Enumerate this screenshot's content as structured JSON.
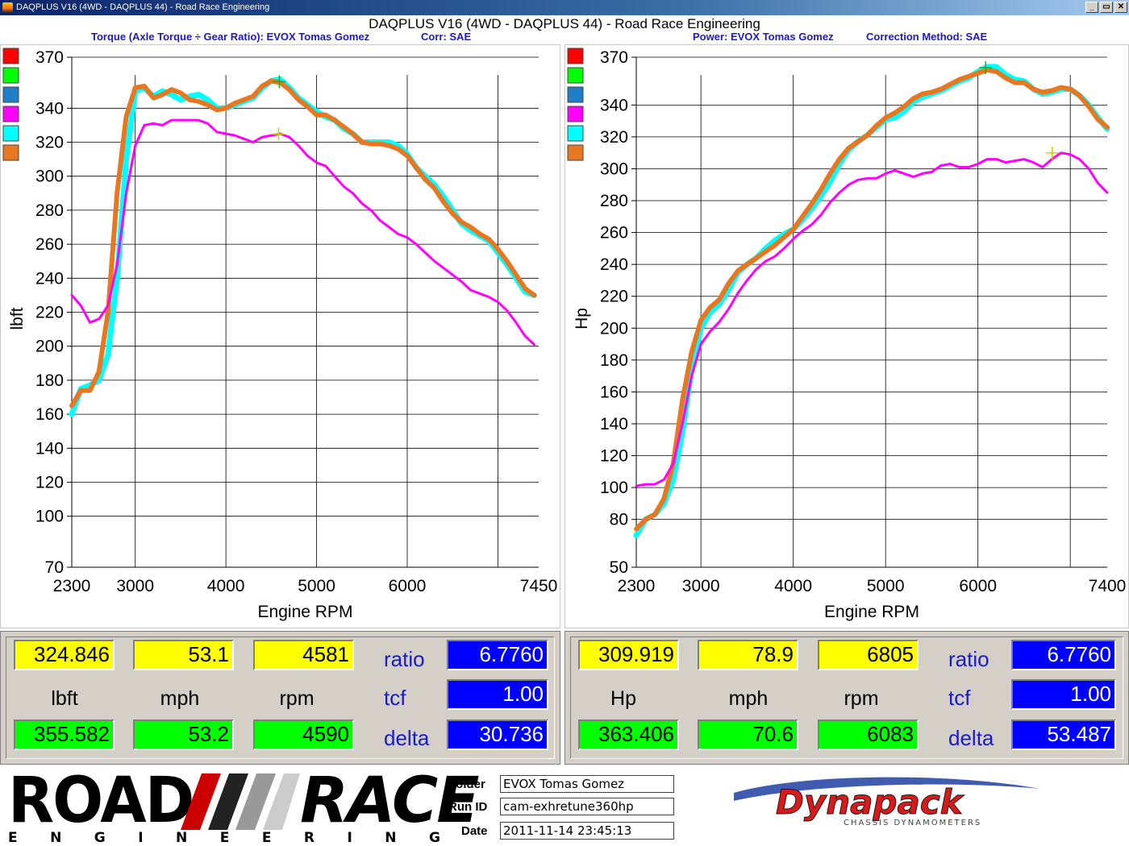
{
  "window": {
    "title": "DAQPLUS V16 (4WD - DAQPLUS 44) - Road Race Engineering",
    "buttons": [
      "_",
      "▭",
      "✕"
    ]
  },
  "main_title": "DAQPLUS V16 (4WD - DAQPLUS 44) - Road Race Engineering",
  "left_panel": {
    "subtitle_a": "Torque (Axle Torque ÷ Gear Ratio): EVOX Tomas Gomez",
    "subtitle_b": "Corr: SAE",
    "readout": {
      "top_values": [
        "324.846",
        "53.1",
        "4581"
      ],
      "units": [
        "lbft",
        "mph",
        "rpm"
      ],
      "bottom_values": [
        "355.582",
        "53.2",
        "4590"
      ],
      "labels": [
        "ratio",
        "tcf",
        "delta"
      ],
      "side_values": [
        "6.7760",
        "1.00",
        "30.736"
      ]
    }
  },
  "right_panel": {
    "subtitle_a": "Power: EVOX Tomas Gomez",
    "subtitle_b": "Correction Method: SAE",
    "readout": {
      "top_values": [
        "309.919",
        "78.9",
        "6805"
      ],
      "units": [
        "Hp",
        "mph",
        "rpm"
      ],
      "bottom_values": [
        "363.406",
        "70.6",
        "6083"
      ],
      "labels": [
        "ratio",
        "tcf",
        "delta"
      ],
      "side_values": [
        "6.7760",
        "1.00",
        "53.487"
      ]
    }
  },
  "legend_colors": [
    "#ff0000",
    "#00ff00",
    "#1e7fc8",
    "#ff00ff",
    "#00ffff",
    "#e87722"
  ],
  "chart_data": [
    {
      "type": "line",
      "xlabel": "Engine RPM",
      "ylabel": "lbft",
      "xlim": [
        2300,
        7450
      ],
      "ylim": [
        70,
        370
      ],
      "y_ticks": [
        370,
        340,
        320,
        300,
        280,
        260,
        240,
        220,
        200,
        180,
        160,
        140,
        120,
        100,
        70
      ],
      "x_ticks": [
        2300,
        3000,
        4000,
        5000,
        6000,
        7450
      ],
      "x_grid": [
        3000,
        4000,
        5000,
        6000,
        7000
      ],
      "grid": true,
      "series": [
        {
          "color": "#00ffff",
          "width": 7,
          "x": [
            2300,
            2400,
            2500,
            2600,
            2700,
            2800,
            2900,
            3000,
            3100,
            3200,
            3300,
            3400,
            3500,
            3600,
            3700,
            3800,
            3900,
            4000,
            4100,
            4200,
            4300,
            4400,
            4500,
            4600,
            4700,
            4800,
            4900,
            5000,
            5100,
            5200,
            5300,
            5400,
            5500,
            5600,
            5700,
            5800,
            5900,
            6000,
            6100,
            6200,
            6300,
            6400,
            6500,
            6600,
            6700,
            6800,
            6900,
            7000,
            7100,
            7200,
            7300,
            7400
          ],
          "y": [
            160,
            175,
            177,
            180,
            195,
            240,
            310,
            350,
            352,
            347,
            350,
            348,
            345,
            347,
            348,
            345,
            340,
            340,
            342,
            344,
            346,
            352,
            356,
            357,
            352,
            346,
            342,
            338,
            335,
            333,
            328,
            325,
            320,
            320,
            320,
            320,
            318,
            313,
            305,
            300,
            295,
            288,
            280,
            272,
            268,
            265,
            262,
            255,
            248,
            240,
            232,
            230
          ]
        },
        {
          "color": "#e87722",
          "width": 6,
          "x": [
            2300,
            2400,
            2500,
            2600,
            2700,
            2800,
            2900,
            3000,
            3100,
            3200,
            3300,
            3400,
            3500,
            3600,
            3700,
            3800,
            3900,
            4000,
            4100,
            4200,
            4300,
            4400,
            4500,
            4600,
            4700,
            4800,
            4900,
            5000,
            5100,
            5200,
            5300,
            5400,
            5500,
            5600,
            5700,
            5800,
            5900,
            6000,
            6100,
            6200,
            6300,
            6400,
            6500,
            6600,
            6700,
            6800,
            6900,
            7000,
            7100,
            7200,
            7300,
            7400
          ],
          "y": [
            165,
            174,
            174,
            185,
            220,
            290,
            335,
            352,
            353,
            346,
            348,
            351,
            349,
            345,
            344,
            342,
            339,
            340,
            343,
            345,
            347,
            353,
            356,
            355,
            351,
            345,
            341,
            336,
            336,
            333,
            329,
            325,
            320,
            319,
            319,
            318,
            316,
            312,
            305,
            298,
            293,
            285,
            278,
            273,
            270,
            266,
            263,
            257,
            250,
            242,
            234,
            230
          ]
        },
        {
          "color": "#ff00ff",
          "width": 3,
          "x": [
            2300,
            2400,
            2500,
            2600,
            2700,
            2800,
            2900,
            3000,
            3100,
            3200,
            3300,
            3400,
            3500,
            3600,
            3700,
            3800,
            3900,
            4000,
            4100,
            4200,
            4300,
            4400,
            4500,
            4600,
            4700,
            4800,
            4900,
            5000,
            5100,
            5200,
            5300,
            5400,
            5500,
            5600,
            5700,
            5800,
            5900,
            6000,
            6100,
            6200,
            6300,
            6400,
            6500,
            6600,
            6700,
            6800,
            6900,
            7000,
            7100,
            7200,
            7300,
            7400
          ],
          "y": [
            230,
            224,
            214,
            216,
            224,
            248,
            290,
            318,
            330,
            331,
            330,
            333,
            333,
            333,
            333,
            331,
            326,
            325,
            324,
            322,
            320,
            323,
            324,
            325,
            323,
            318,
            312,
            308,
            306,
            300,
            294,
            290,
            284,
            280,
            274,
            270,
            266,
            264,
            260,
            255,
            250,
            246,
            242,
            238,
            233,
            231,
            229,
            226,
            221,
            214,
            206,
            201
          ]
        }
      ],
      "markers": [
        {
          "x": 4590,
          "y": 355.6,
          "color": "#22aa22"
        },
        {
          "x": 4581,
          "y": 324.8,
          "color": "#cccc00"
        }
      ]
    },
    {
      "type": "line",
      "xlabel": "Engine RPM",
      "ylabel": "Hp",
      "xlim": [
        2300,
        7400
      ],
      "ylim": [
        50,
        370
      ],
      "y_ticks": [
        370,
        340,
        320,
        300,
        280,
        260,
        240,
        220,
        200,
        180,
        160,
        140,
        120,
        100,
        80,
        50
      ],
      "x_ticks": [
        2300,
        3000,
        4000,
        5000,
        6000,
        7400
      ],
      "x_grid": [
        3000,
        4000,
        5000,
        6000,
        7000
      ],
      "grid": true,
      "series": [
        {
          "color": "#00ffff",
          "width": 7,
          "x": [
            2300,
            2400,
            2500,
            2600,
            2700,
            2800,
            2900,
            3000,
            3100,
            3200,
            3300,
            3400,
            3500,
            3600,
            3700,
            3800,
            3900,
            4000,
            4100,
            4200,
            4300,
            4400,
            4500,
            4600,
            4700,
            4800,
            4900,
            5000,
            5100,
            5200,
            5300,
            5400,
            5500,
            5600,
            5700,
            5800,
            5900,
            6000,
            6100,
            6200,
            6300,
            6400,
            6500,
            6600,
            6700,
            6800,
            6900,
            7000,
            7100,
            7200,
            7300,
            7400
          ],
          "y": [
            70,
            80,
            83,
            90,
            105,
            135,
            175,
            200,
            210,
            215,
            224,
            235,
            240,
            244,
            250,
            255,
            259,
            262,
            268,
            275,
            283,
            292,
            303,
            312,
            317,
            321,
            326,
            331,
            332,
            336,
            342,
            345,
            347,
            349,
            352,
            355,
            357,
            361,
            364,
            364,
            359,
            356,
            355,
            350,
            347,
            348,
            350,
            350,
            346,
            340,
            332,
            325
          ]
        },
        {
          "color": "#e87722",
          "width": 6,
          "x": [
            2300,
            2400,
            2500,
            2600,
            2700,
            2800,
            2900,
            3000,
            3100,
            3200,
            3300,
            3400,
            3500,
            3600,
            3700,
            3800,
            3900,
            4000,
            4100,
            4200,
            4300,
            4400,
            4500,
            4600,
            4700,
            4800,
            4900,
            5000,
            5100,
            5200,
            5300,
            5400,
            5500,
            5600,
            5700,
            5800,
            5900,
            6000,
            6100,
            6200,
            6300,
            6400,
            6500,
            6600,
            6700,
            6800,
            6900,
            7000,
            7100,
            7200,
            7300,
            7400
          ],
          "y": [
            74,
            80,
            83,
            93,
            115,
            155,
            185,
            205,
            213,
            218,
            228,
            236,
            240,
            244,
            248,
            252,
            257,
            262,
            270,
            278,
            287,
            297,
            306,
            313,
            317,
            321,
            327,
            332,
            335,
            339,
            344,
            347,
            348,
            350,
            353,
            356,
            358,
            360,
            362,
            361,
            357,
            354,
            354,
            350,
            348,
            349,
            351,
            350,
            346,
            339,
            331,
            326
          ]
        },
        {
          "color": "#ff00ff",
          "width": 3,
          "x": [
            2300,
            2400,
            2500,
            2600,
            2700,
            2800,
            2900,
            3000,
            3100,
            3200,
            3300,
            3400,
            3500,
            3600,
            3700,
            3800,
            3900,
            4000,
            4100,
            4200,
            4300,
            4400,
            4500,
            4600,
            4700,
            4800,
            4900,
            5000,
            5100,
            5200,
            5300,
            5400,
            5500,
            5600,
            5700,
            5800,
            5900,
            6000,
            6100,
            6200,
            6300,
            6400,
            6500,
            6600,
            6700,
            6800,
            6900,
            7000,
            7100,
            7200,
            7300,
            7400
          ],
          "y": [
            101,
            102,
            102,
            105,
            115,
            140,
            170,
            190,
            198,
            204,
            212,
            222,
            230,
            237,
            242,
            245,
            250,
            256,
            261,
            265,
            271,
            279,
            285,
            290,
            293,
            294,
            294,
            297,
            299,
            297,
            295,
            297,
            298,
            302,
            303,
            301,
            301,
            303,
            306,
            306,
            304,
            305,
            306,
            304,
            301,
            306,
            310,
            309,
            306,
            300,
            291,
            285
          ]
        }
      ],
      "markers": [
        {
          "x": 6083,
          "y": 363.4,
          "color": "#22aa22"
        },
        {
          "x": 6805,
          "y": 309.9,
          "color": "#cccc00"
        }
      ]
    }
  ],
  "footer": {
    "logo_road": "ROAD",
    "logo_race": "RACE",
    "logo_engineering": "ENGINEERING",
    "meta": [
      {
        "label": "Folder",
        "value": "EVOX Tomas Gomez"
      },
      {
        "label": "Run ID",
        "value": "cam-exhretune360hp"
      },
      {
        "label": "Date",
        "value": "2011-11-14 23:45:13"
      }
    ],
    "dynapack": "Dynapack",
    "dynapack_sub": "CHASSIS DYNAMOMETERS"
  }
}
